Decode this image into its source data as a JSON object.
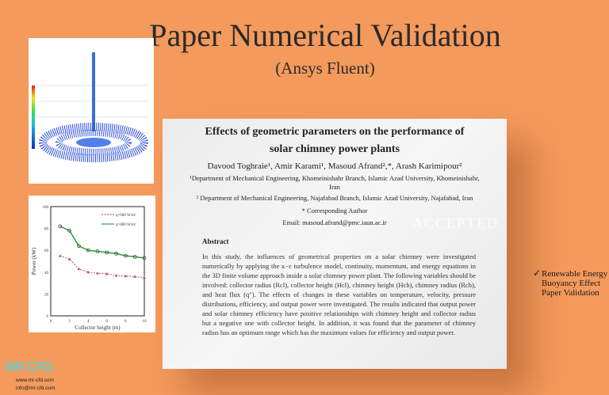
{
  "header": {
    "title": "Paper Numerical Validation",
    "subtitle": "(Ansys Fluent)"
  },
  "paper": {
    "title_line1": "Effects of geometric parameters on the performance of",
    "title_line2": "solar chimney power plants",
    "authors": "Davood Toghraie¹, Amir Karami¹, Masoud Afrand²,*, Arash Karimipour²",
    "affiliation1": "¹Department of Mechanical Engineering, Khomeinishahr Branch, Islamic Azad University, Khomeinishahr, Iran",
    "affiliation2": "² Department of Mechanical Engineering, Najafabad Branch, Islamic Azad University, Najafabad, Iran",
    "corresponding": "* Corresponding Author",
    "email": "Email: masoud.afrand@pmc.iaun.ac.ir",
    "abstract_heading": "Abstract",
    "abstract": "In this study, the influences of geometrical properties on a solar chimney were investigated numerically by applying the κ−ε turbulence model, continuity, momentum, and energy equations in the 3D finite volume approach inside a solar chimney power plant. The following variables should be involved: collector radius (Rcl), collector height (Hcl), chimney height (Hch), chimney radius (Rch), and heat flux (q″). The effects of changes in these variables on temperature, velocity, pressure distributions, efficiency, and output power were investigated. The results indicated that output power and solar chimney efficiency have positive relationships with chimney height and collector radius but a negative one with collector height. In addition, it was found that the parameter of chimney radius has an optimum range which has the maximum values for efficiency and output power.",
    "watermark": "ACCEPTED"
  },
  "features": [
    "Renewable Energy",
    "Buoyancy Effect",
    "Paper Validation"
  ],
  "brand": {
    "logo": "MR CFD",
    "website": "www.mr-cfd.com",
    "email": "info@mr-cfd.com"
  },
  "colors": {
    "background": "#F39A5C",
    "logo": "#6fc9c2",
    "series600": "#c0506a",
    "series800": "#3aa040"
  },
  "chart_data": {
    "type": "scatter",
    "xlabel": "Collector height (m)",
    "ylabel": "Power (kW)",
    "xlim": [
      0,
      10
    ],
    "ylim": [
      0,
      100
    ],
    "xticks": [
      0,
      2,
      4,
      6,
      8,
      10
    ],
    "yticks": [
      0,
      20,
      40,
      60,
      80,
      100
    ],
    "legend_placement": "top-right",
    "series": [
      {
        "name": "q=600 W/m²",
        "x": [
          1,
          2,
          3,
          4,
          5,
          6,
          7,
          8,
          9,
          10
        ],
        "values": [
          55,
          52,
          43,
          40,
          39,
          38.5,
          37,
          36.5,
          36,
          35
        ]
      },
      {
        "name": "q=800 W/m²",
        "x": [
          1,
          2,
          3,
          4,
          5,
          6,
          7,
          8,
          9,
          10
        ],
        "values": [
          82,
          78,
          64,
          60,
          59,
          58,
          57,
          55,
          54,
          53
        ]
      }
    ]
  }
}
